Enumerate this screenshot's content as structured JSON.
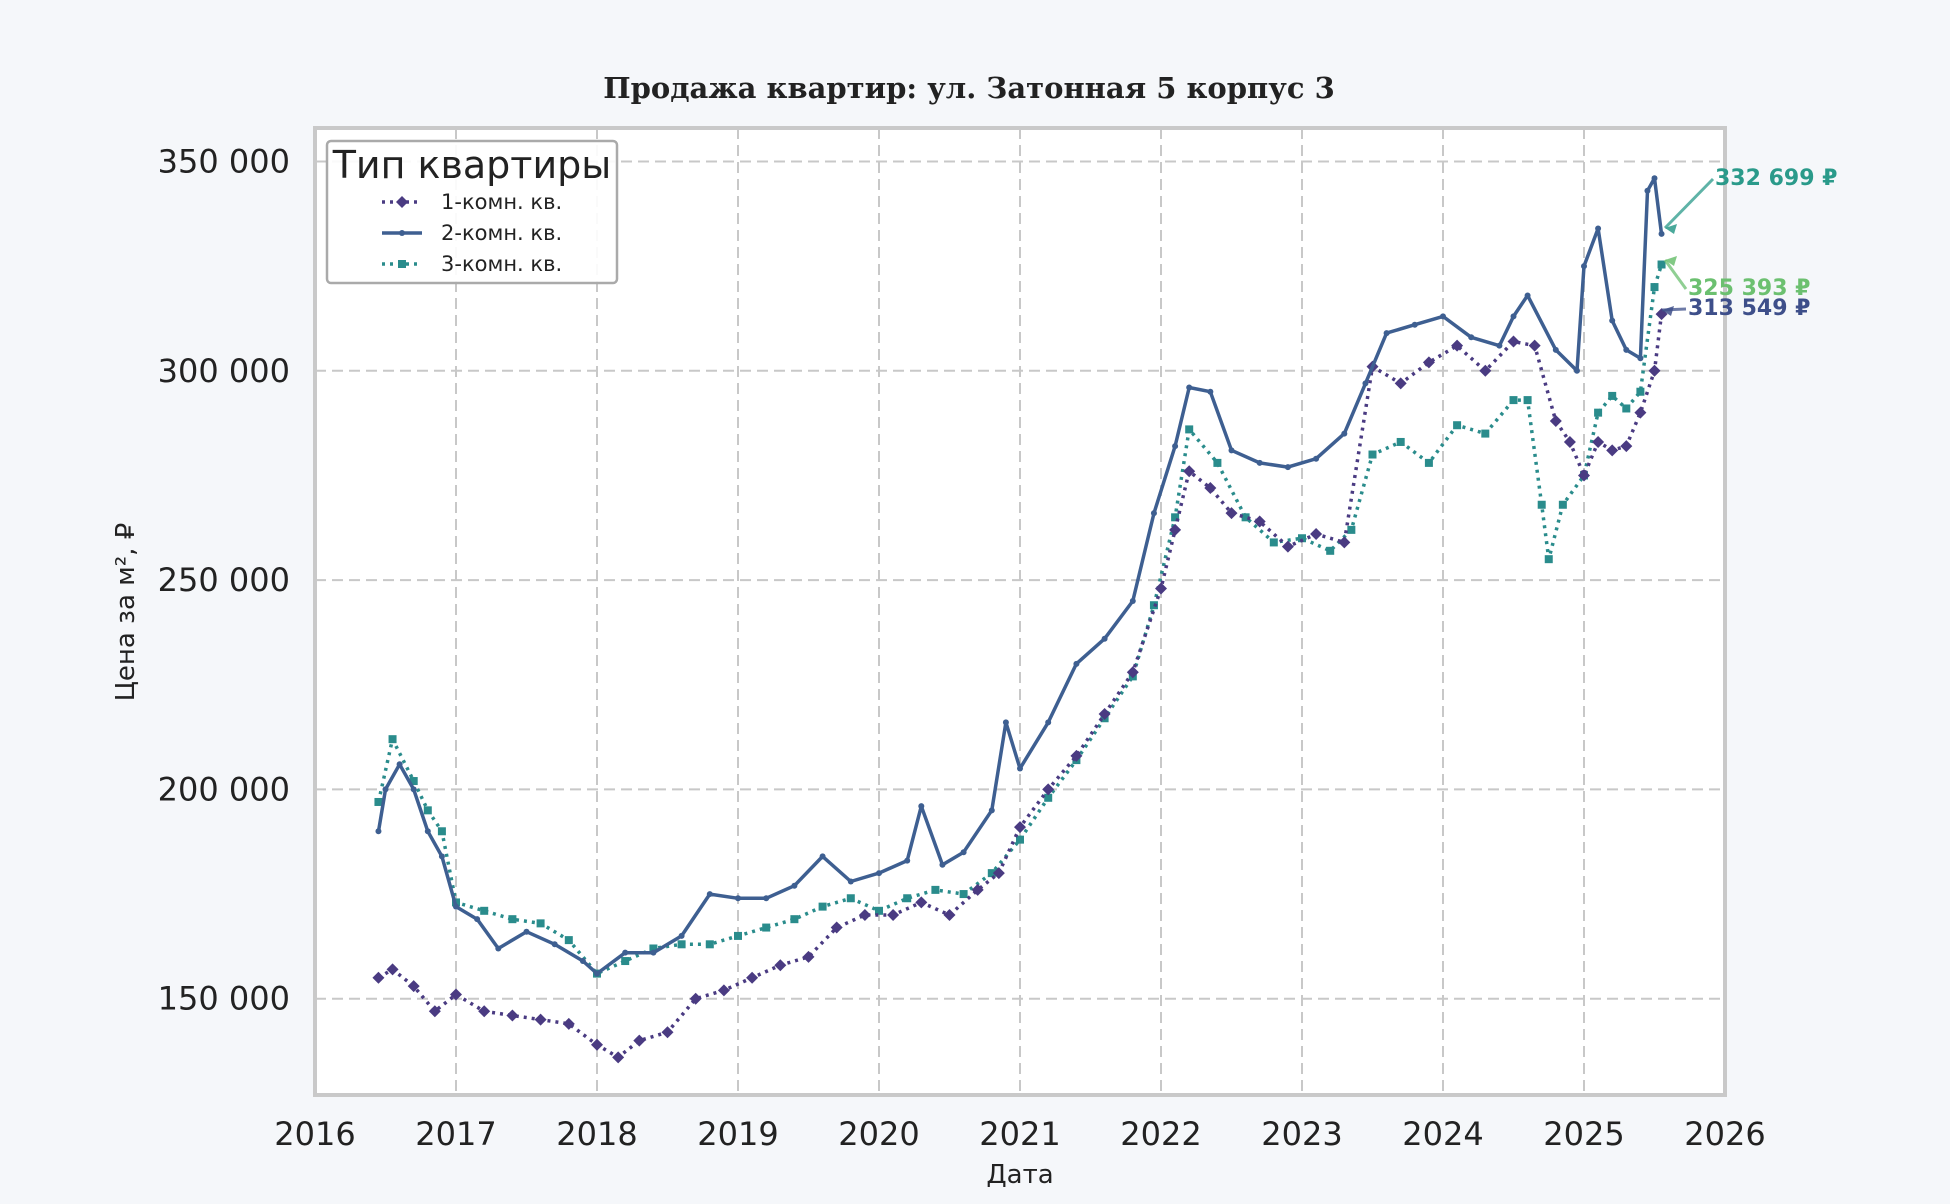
{
  "chart_data": {
    "type": "line",
    "title": "Продажа квартир: ул. Затонная 5 корпус 3",
    "xlabel": "Дата",
    "ylabel": "Цена за м², ₽",
    "xlim": [
      2016,
      2026
    ],
    "ylim": [
      127000,
      358000
    ],
    "grid": true,
    "legend_title": "Тип квартиры",
    "legend_placement": "top-left",
    "x_ticks": [
      2016,
      2017,
      2018,
      2019,
      2020,
      2021,
      2022,
      2023,
      2024,
      2025,
      2026
    ],
    "x_tick_labels": [
      "2016",
      "2017",
      "2018",
      "2019",
      "2020",
      "2021",
      "2022",
      "2023",
      "2024",
      "2025",
      "2026"
    ],
    "y_ticks": [
      150000,
      200000,
      250000,
      300000,
      350000
    ],
    "y_tick_labels": [
      "150 000",
      "200 000",
      "250 000",
      "300 000",
      "350 000"
    ],
    "series": [
      {
        "name": "1-комн. кв.",
        "color": "#4a3b82",
        "style": "dotted-diamond",
        "points": [
          [
            2016.45,
            155000
          ],
          [
            2016.55,
            157000
          ],
          [
            2016.7,
            153000
          ],
          [
            2016.85,
            147000
          ],
          [
            2017.0,
            151000
          ],
          [
            2017.2,
            147000
          ],
          [
            2017.4,
            146000
          ],
          [
            2017.6,
            145000
          ],
          [
            2017.8,
            144000
          ],
          [
            2018.0,
            139000
          ],
          [
            2018.15,
            136000
          ],
          [
            2018.3,
            140000
          ],
          [
            2018.5,
            142000
          ],
          [
            2018.7,
            150000
          ],
          [
            2018.9,
            152000
          ],
          [
            2019.1,
            155000
          ],
          [
            2019.3,
            158000
          ],
          [
            2019.5,
            160000
          ],
          [
            2019.7,
            167000
          ],
          [
            2019.9,
            170000
          ],
          [
            2020.1,
            170000
          ],
          [
            2020.3,
            173000
          ],
          [
            2020.5,
            170000
          ],
          [
            2020.7,
            176000
          ],
          [
            2020.85,
            180000
          ],
          [
            2021.0,
            191000
          ],
          [
            2021.2,
            200000
          ],
          [
            2021.4,
            208000
          ],
          [
            2021.6,
            218000
          ],
          [
            2021.8,
            228000
          ],
          [
            2022.0,
            248000
          ],
          [
            2022.1,
            262000
          ],
          [
            2022.2,
            276000
          ],
          [
            2022.35,
            272000
          ],
          [
            2022.5,
            266000
          ],
          [
            2022.7,
            264000
          ],
          [
            2022.9,
            258000
          ],
          [
            2023.1,
            261000
          ],
          [
            2023.3,
            259000
          ],
          [
            2023.5,
            301000
          ],
          [
            2023.7,
            297000
          ],
          [
            2023.9,
            302000
          ],
          [
            2024.1,
            306000
          ],
          [
            2024.3,
            300000
          ],
          [
            2024.5,
            307000
          ],
          [
            2024.65,
            306000
          ],
          [
            2024.8,
            288000
          ],
          [
            2024.9,
            283000
          ],
          [
            2025.0,
            275000
          ],
          [
            2025.1,
            283000
          ],
          [
            2025.2,
            281000
          ],
          [
            2025.3,
            282000
          ],
          [
            2025.4,
            290000
          ],
          [
            2025.5,
            300000
          ],
          [
            2025.55,
            313549
          ]
        ]
      },
      {
        "name": "2-комн. кв.",
        "color": "#3e5f91",
        "style": "solid",
        "points": [
          [
            2016.45,
            190000
          ],
          [
            2016.5,
            200000
          ],
          [
            2016.6,
            206000
          ],
          [
            2016.7,
            200000
          ],
          [
            2016.8,
            190000
          ],
          [
            2016.9,
            184000
          ],
          [
            2017.0,
            172000
          ],
          [
            2017.15,
            169000
          ],
          [
            2017.3,
            162000
          ],
          [
            2017.5,
            166000
          ],
          [
            2017.7,
            163000
          ],
          [
            2017.9,
            159000
          ],
          [
            2018.0,
            156000
          ],
          [
            2018.2,
            161000
          ],
          [
            2018.4,
            161000
          ],
          [
            2018.6,
            165000
          ],
          [
            2018.8,
            175000
          ],
          [
            2019.0,
            174000
          ],
          [
            2019.2,
            174000
          ],
          [
            2019.4,
            177000
          ],
          [
            2019.6,
            184000
          ],
          [
            2019.8,
            178000
          ],
          [
            2020.0,
            180000
          ],
          [
            2020.2,
            183000
          ],
          [
            2020.3,
            196000
          ],
          [
            2020.45,
            182000
          ],
          [
            2020.6,
            185000
          ],
          [
            2020.8,
            195000
          ],
          [
            2020.9,
            216000
          ],
          [
            2021.0,
            205000
          ],
          [
            2021.2,
            216000
          ],
          [
            2021.4,
            230000
          ],
          [
            2021.6,
            236000
          ],
          [
            2021.8,
            245000
          ],
          [
            2021.95,
            266000
          ],
          [
            2022.1,
            282000
          ],
          [
            2022.2,
            296000
          ],
          [
            2022.35,
            295000
          ],
          [
            2022.5,
            281000
          ],
          [
            2022.7,
            278000
          ],
          [
            2022.9,
            277000
          ],
          [
            2023.1,
            279000
          ],
          [
            2023.3,
            285000
          ],
          [
            2023.45,
            297000
          ],
          [
            2023.6,
            309000
          ],
          [
            2023.8,
            311000
          ],
          [
            2024.0,
            313000
          ],
          [
            2024.2,
            308000
          ],
          [
            2024.4,
            306000
          ],
          [
            2024.5,
            313000
          ],
          [
            2024.6,
            318000
          ],
          [
            2024.8,
            305000
          ],
          [
            2024.95,
            300000
          ],
          [
            2025.0,
            325000
          ],
          [
            2025.1,
            334000
          ],
          [
            2025.2,
            312000
          ],
          [
            2025.3,
            305000
          ],
          [
            2025.4,
            303000
          ],
          [
            2025.45,
            343000
          ],
          [
            2025.5,
            346000
          ],
          [
            2025.55,
            332699
          ]
        ]
      },
      {
        "name": "3-комн. кв.",
        "color": "#2a8c8c",
        "style": "dotted-x",
        "points": [
          [
            2016.45,
            197000
          ],
          [
            2016.55,
            212000
          ],
          [
            2016.7,
            202000
          ],
          [
            2016.8,
            195000
          ],
          [
            2016.9,
            190000
          ],
          [
            2017.0,
            173000
          ],
          [
            2017.2,
            171000
          ],
          [
            2017.4,
            169000
          ],
          [
            2017.6,
            168000
          ],
          [
            2017.8,
            164000
          ],
          [
            2018.0,
            156000
          ],
          [
            2018.2,
            159000
          ],
          [
            2018.4,
            162000
          ],
          [
            2018.6,
            163000
          ],
          [
            2018.8,
            163000
          ],
          [
            2019.0,
            165000
          ],
          [
            2019.2,
            167000
          ],
          [
            2019.4,
            169000
          ],
          [
            2019.6,
            172000
          ],
          [
            2019.8,
            174000
          ],
          [
            2020.0,
            171000
          ],
          [
            2020.2,
            174000
          ],
          [
            2020.4,
            176000
          ],
          [
            2020.6,
            175000
          ],
          [
            2020.8,
            180000
          ],
          [
            2021.0,
            188000
          ],
          [
            2021.2,
            198000
          ],
          [
            2021.4,
            207000
          ],
          [
            2021.6,
            217000
          ],
          [
            2021.8,
            227000
          ],
          [
            2021.95,
            244000
          ],
          [
            2022.1,
            265000
          ],
          [
            2022.2,
            286000
          ],
          [
            2022.4,
            278000
          ],
          [
            2022.6,
            265000
          ],
          [
            2022.8,
            259000
          ],
          [
            2023.0,
            260000
          ],
          [
            2023.2,
            257000
          ],
          [
            2023.35,
            262000
          ],
          [
            2023.5,
            280000
          ],
          [
            2023.7,
            283000
          ],
          [
            2023.9,
            278000
          ],
          [
            2024.1,
            287000
          ],
          [
            2024.3,
            285000
          ],
          [
            2024.5,
            293000
          ],
          [
            2024.6,
            293000
          ],
          [
            2024.7,
            268000
          ],
          [
            2024.75,
            255000
          ],
          [
            2024.85,
            268000
          ],
          [
            2025.0,
            275000
          ],
          [
            2025.1,
            290000
          ],
          [
            2025.2,
            294000
          ],
          [
            2025.3,
            291000
          ],
          [
            2025.4,
            295000
          ],
          [
            2025.5,
            320000
          ],
          [
            2025.55,
            325393
          ]
        ]
      }
    ],
    "annotations": [
      {
        "text": "332 699 ₽",
        "color": "#2a9a8a",
        "value": 332699,
        "x": 2025.55
      },
      {
        "text": "325 393 ₽",
        "color": "#6cc070",
        "value": 325393,
        "x": 2025.55
      },
      {
        "text": "313 549 ₽",
        "color": "#3e4f8a",
        "value": 313549,
        "x": 2025.55
      }
    ]
  }
}
